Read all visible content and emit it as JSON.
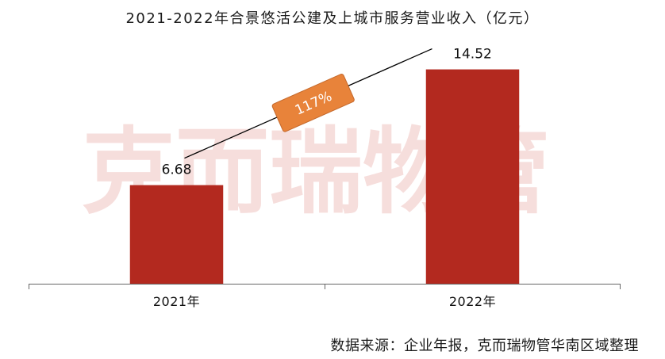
{
  "chart_data": {
    "type": "bar",
    "title": "2021-2022年合景悠活公建及上城市服务营业收入（亿元）",
    "categories": [
      "2021年",
      "2022年"
    ],
    "values": [
      6.68,
      14.52
    ],
    "ylim": [
      0,
      16
    ],
    "grid": false,
    "legend": "none",
    "growth_label": "117%",
    "colors": {
      "bar": "#B3291F",
      "growth_box": "#E8833A",
      "growth_box_border": "#C4692C",
      "connector": "#000000"
    }
  },
  "watermark": "克而瑞物管",
  "source": "数据来源：企业年报，克而瑞物管华南区域整理"
}
